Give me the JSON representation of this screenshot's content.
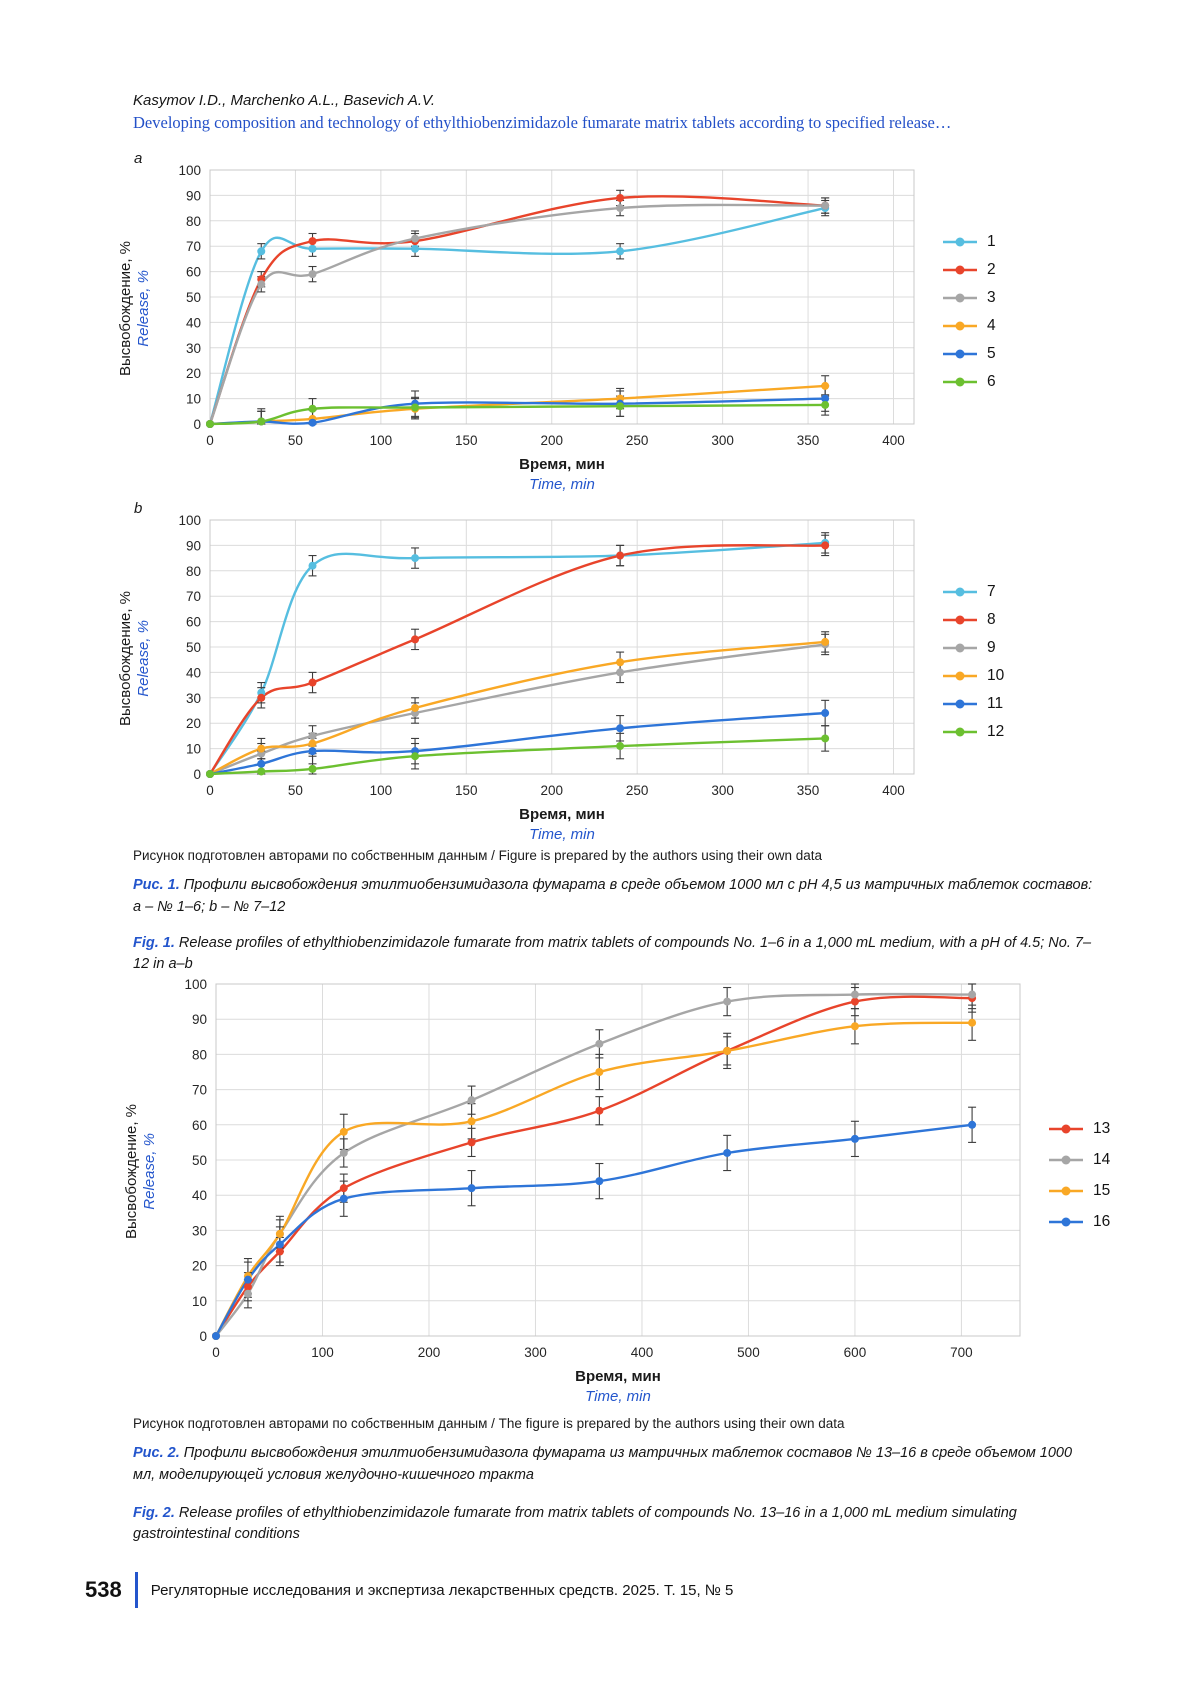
{
  "header": {
    "authors": "Kasymov I.D., Marchenko A.L., Basevich A.V.",
    "running_title": "Developing composition and technology of ethylthiobenzimidazole fumarate matrix tablets according to specified release…"
  },
  "axis_titles": {
    "x_ru": "Время, мин",
    "x_en": "Time, min",
    "y_ru": "Высвобождение, %",
    "y_en": "Release, %"
  },
  "figure1": {
    "source_note": "Рисунок подготовлен авторами по собственным данным / Figure is prepared by the authors using their own data",
    "caption_ru_label": "Рис. 1.",
    "caption_ru": " Профили высвобождения этилтиобензимидазола фумарата в среде объемом 1000 мл с pH 4,5 из матричных таблеток составов: a – № 1–6; b – № 7–12",
    "caption_en_label": "Fig. 1.",
    "caption_en": " Release profiles of ethylthiobenzimidazole fumarate from matrix tablets of compounds No. 1–6 in a 1,000 mL medium, with a pH of 4.5; No. 7–12 in a–b"
  },
  "figure2": {
    "source_note": "Рисунок подготовлен авторами по собственным данным / The figure is prepared by the authors using their own data",
    "caption_ru_label": "Рис. 2.",
    "caption_ru": " Профили высвобождения этилтиобензимидазола фумарата из матричных таблеток составов № 13–16 в среде объемом 1000 мл, моделирующей условия желудочно-кишечного тракта",
    "caption_en_label": "Fig. 2.",
    "caption_en": " Release profiles of ethylthiobenzimidazole fumarate from matrix tablets of compounds No. 13–16 in a 1,000 mL medium simulating gastrointestinal conditions"
  },
  "footer": {
    "page_number": "538",
    "journal_line": "Регуляторные исследования и экспертиза лекарственных средств. 2025. Т. 15, № 5"
  },
  "colors": {
    "accent_blue": "#2355cc",
    "grid": "#dcdcdc",
    "axis": "#b9b9b9"
  },
  "chart_data": [
    {
      "type": "line",
      "panel": "a",
      "x": [
        0,
        30,
        60,
        120,
        240,
        360
      ],
      "x_ticks": [
        0,
        50,
        100,
        150,
        200,
        250,
        300,
        350,
        400
      ],
      "xlim": [
        0,
        412
      ],
      "ylim": [
        0,
        100
      ],
      "y_step": 10,
      "xlabel_ru": "Время, мин",
      "xlabel_en": "Time, min",
      "ylabel_ru": "Высвобождение, %",
      "ylabel_en": "Release, %",
      "legend_position": "right",
      "grid": true,
      "series": [
        {
          "name": "1",
          "color": "#56BEE0",
          "err": 3,
          "values": [
            0,
            68,
            69,
            69,
            68,
            85
          ]
        },
        {
          "name": "2",
          "color": "#E8442B",
          "err": 3,
          "values": [
            0,
            57,
            72,
            72,
            89,
            86
          ]
        },
        {
          "name": "3",
          "color": "#A6A6A6",
          "err": 3,
          "values": [
            0,
            55,
            59,
            73,
            85,
            86
          ]
        },
        {
          "name": "4",
          "color": "#F9A825",
          "err": 4,
          "values": [
            0,
            1,
            2,
            6,
            10,
            15
          ]
        },
        {
          "name": "5",
          "color": "#2E75D8",
          "err": 5,
          "values": [
            0,
            1,
            0.5,
            8,
            8,
            10
          ]
        },
        {
          "name": "6",
          "color": "#6CC030",
          "err": 4,
          "values": [
            0,
            1,
            6,
            6.5,
            7,
            7.5
          ]
        }
      ]
    },
    {
      "type": "line",
      "panel": "b",
      "x": [
        0,
        30,
        60,
        120,
        240,
        360
      ],
      "x_ticks": [
        0,
        50,
        100,
        150,
        200,
        250,
        300,
        350,
        400
      ],
      "xlim": [
        0,
        412
      ],
      "ylim": [
        0,
        100
      ],
      "y_step": 10,
      "xlabel_ru": "Время, мин",
      "xlabel_en": "Time, min",
      "ylabel_ru": "Высвобождение, %",
      "ylabel_en": "Release, %",
      "legend_position": "right",
      "grid": true,
      "series": [
        {
          "name": "7",
          "color": "#56BEE0",
          "err": 4,
          "values": [
            0,
            32,
            82,
            85,
            86,
            91
          ]
        },
        {
          "name": "8",
          "color": "#E8442B",
          "err": 4,
          "values": [
            0,
            30,
            36,
            53,
            86,
            90
          ]
        },
        {
          "name": "9",
          "color": "#A6A6A6",
          "err": 4,
          "values": [
            0,
            8,
            15,
            24,
            40,
            51
          ]
        },
        {
          "name": "10",
          "color": "#F9A825",
          "err": 4,
          "values": [
            0,
            10,
            12,
            26,
            44,
            52
          ]
        },
        {
          "name": "11",
          "color": "#2E75D8",
          "err": 5,
          "values": [
            0,
            4,
            9,
            9,
            18,
            24
          ]
        },
        {
          "name": "12",
          "color": "#6CC030",
          "err": 5,
          "values": [
            0,
            1,
            2,
            7,
            11,
            14
          ]
        }
      ]
    },
    {
      "type": "line",
      "panel": "",
      "x": [
        0,
        30,
        60,
        120,
        240,
        360,
        480,
        600,
        710
      ],
      "x_ticks": [
        0,
        100,
        200,
        300,
        400,
        500,
        600,
        700
      ],
      "xlim": [
        0,
        755
      ],
      "ylim": [
        0,
        100
      ],
      "y_step": 10,
      "xlabel_ru": "Время, мин",
      "xlabel_en": "Time, min",
      "ylabel_ru": "Высвобождение, %",
      "ylabel_en": "Release, %",
      "legend_position": "right",
      "grid": true,
      "series": [
        {
          "name": "13",
          "color": "#E8442B",
          "err": 4,
          "values": [
            0,
            14,
            24,
            42,
            55,
            64,
            81,
            95,
            96
          ]
        },
        {
          "name": "14",
          "color": "#A6A6A6",
          "err": 4,
          "values": [
            0,
            12,
            29,
            52,
            67,
            83,
            95,
            97,
            97
          ]
        },
        {
          "name": "15",
          "color": "#F9A825",
          "err": 5,
          "values": [
            0,
            17,
            29,
            58,
            61,
            75,
            81,
            88,
            89
          ]
        },
        {
          "name": "16",
          "color": "#2E75D8",
          "err": 5,
          "values": [
            0,
            16,
            26,
            39,
            42,
            44,
            52,
            56,
            60
          ]
        }
      ]
    }
  ]
}
